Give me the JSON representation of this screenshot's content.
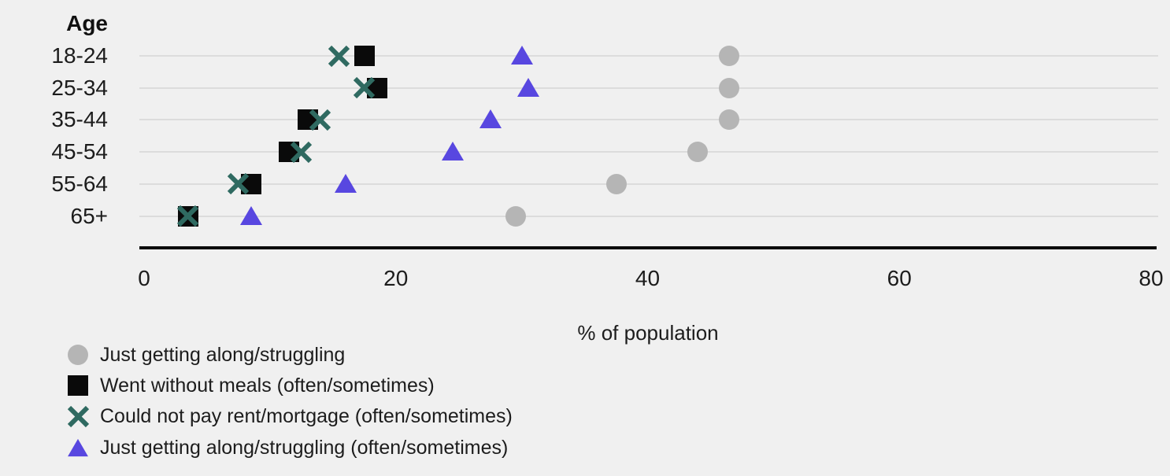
{
  "chart_data": {
    "type": "scatter",
    "subtype": "horizontal-dot-plot",
    "ylabel": "Age",
    "xlabel": "% of population",
    "categories": [
      "18-24",
      "25-34",
      "35-44",
      "45-54",
      "55-64",
      "65+"
    ],
    "series": [
      {
        "name": "Just getting along/struggling",
        "marker": "circle",
        "color": "#b5b5b5",
        "values": [
          46.5,
          46.5,
          46.5,
          44,
          37.5,
          29.5
        ]
      },
      {
        "name": "Went without meals (often/sometimes)",
        "marker": "square",
        "color": "#0a0a0a",
        "values": [
          17.5,
          18.5,
          13,
          11.5,
          8.5,
          3.5
        ]
      },
      {
        "name": "Could not pay rent/mortgage (often/sometimes)",
        "marker": "x",
        "color": "#2f6a61",
        "values": [
          15.5,
          17.5,
          14,
          12.5,
          7.5,
          3.5
        ]
      },
      {
        "name": "Just getting along/struggling (often/sometimes)",
        "marker": "triangle",
        "color": "#5847e0",
        "values": [
          30,
          30.5,
          27.5,
          24.5,
          16,
          8.5
        ]
      }
    ],
    "xticks": [
      0,
      20,
      40,
      60,
      80
    ],
    "xlim": [
      0,
      80
    ],
    "grid": "horizontal",
    "legend_position": "bottom-left",
    "background_color": "#f0f0f0",
    "gridline_color": "#dcdcdc",
    "axis_color": "#0a0a0a"
  }
}
